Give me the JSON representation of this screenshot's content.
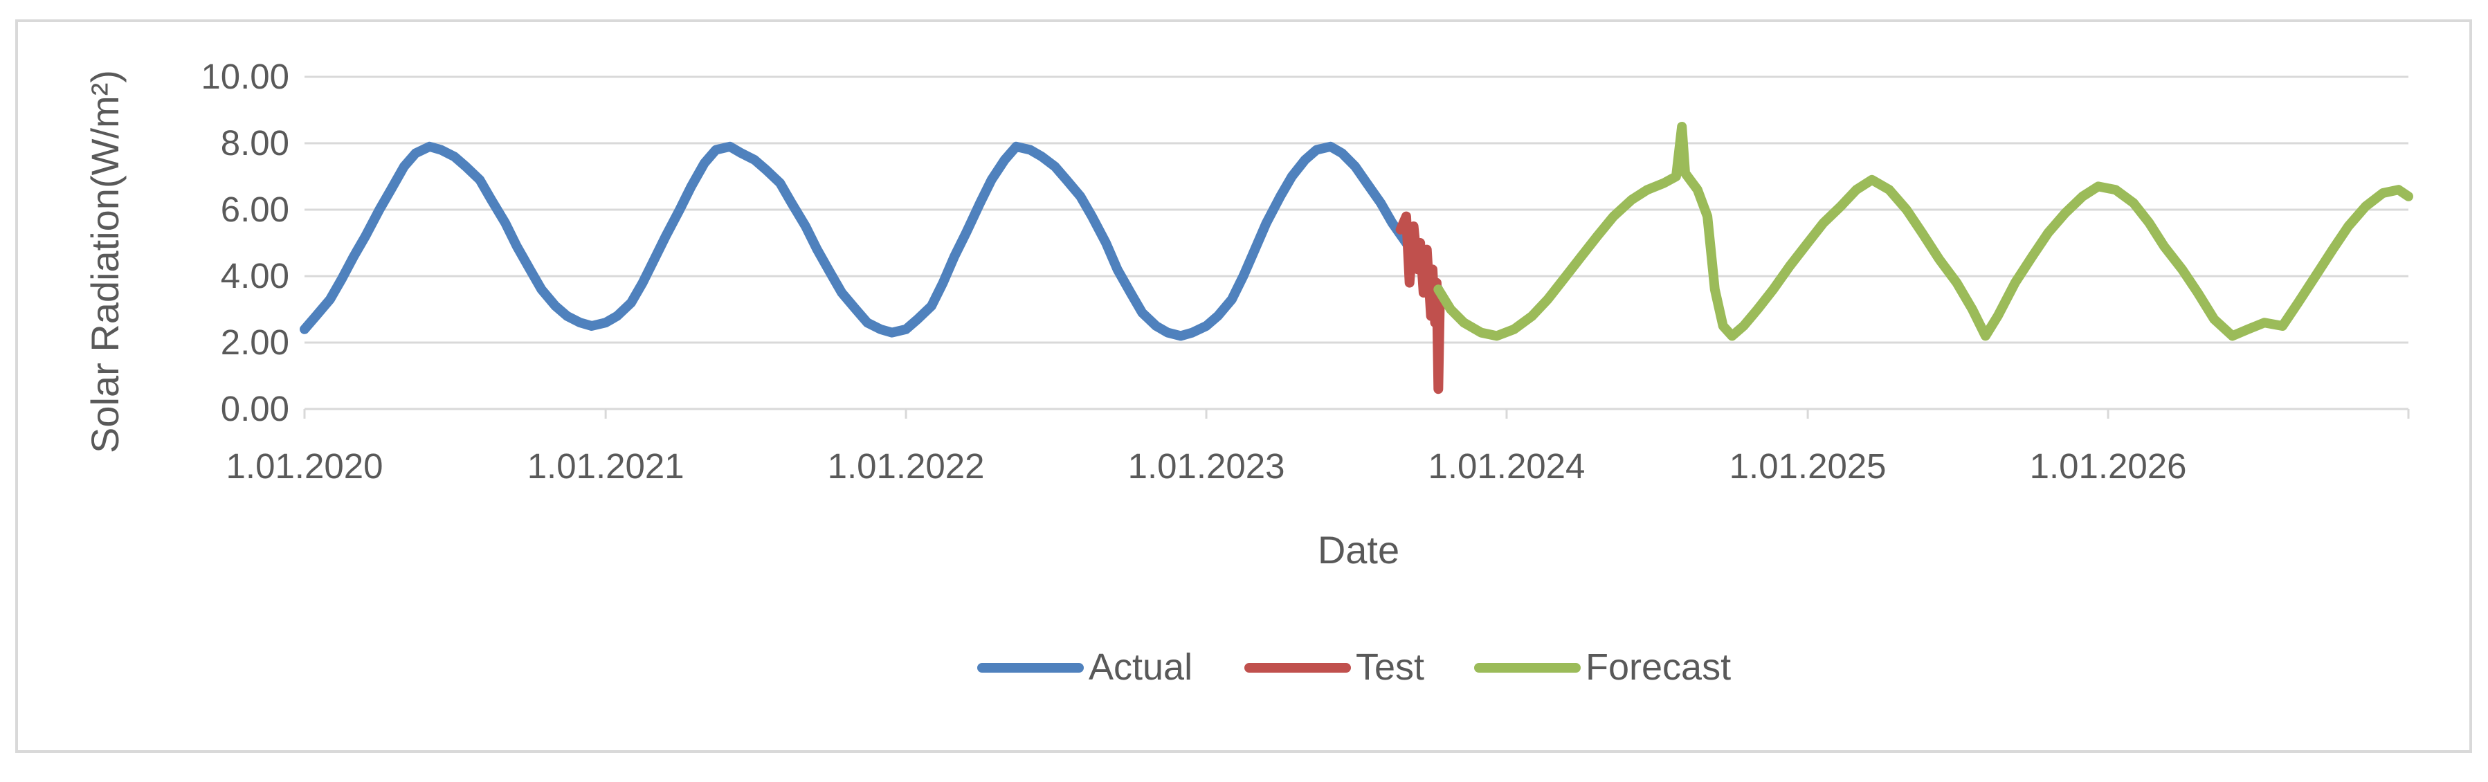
{
  "chart_data": {
    "type": "line",
    "title": "",
    "xlabel": "Date",
    "ylabel": "Solar Radiation(W/m²)",
    "ylim": [
      0,
      10
    ],
    "xlim": [
      "2020-01-01",
      "2027-01-01"
    ],
    "y_ticks": [
      "0.00",
      "2.00",
      "4.00",
      "6.00",
      "8.00",
      "10.00"
    ],
    "x_ticks": [
      {
        "date": "2020-01-01",
        "label": "1.01.2020"
      },
      {
        "date": "2021-01-01",
        "label": "1.01.2021"
      },
      {
        "date": "2022-01-01",
        "label": "1.01.2022"
      },
      {
        "date": "2023-01-01",
        "label": "1.01.2023"
      },
      {
        "date": "2024-01-01",
        "label": "1.01.2024"
      },
      {
        "date": "2025-01-01",
        "label": "1.01.2025"
      },
      {
        "date": "2026-01-01",
        "label": "1.01.2026"
      }
    ],
    "grid": true,
    "legend_position": "bottom",
    "series": [
      {
        "name": "Actual",
        "color": "#4f81bd",
        "points": [
          [
            "2020-01-01",
            2.4
          ],
          [
            "2020-01-15",
            2.8
          ],
          [
            "2020-02-01",
            3.3
          ],
          [
            "2020-02-15",
            3.9
          ],
          [
            "2020-03-01",
            4.6
          ],
          [
            "2020-03-15",
            5.2
          ],
          [
            "2020-04-01",
            6.0
          ],
          [
            "2020-04-15",
            6.6
          ],
          [
            "2020-05-01",
            7.3
          ],
          [
            "2020-05-15",
            7.7
          ],
          [
            "2020-06-01",
            7.9
          ],
          [
            "2020-06-15",
            7.8
          ],
          [
            "2020-07-01",
            7.6
          ],
          [
            "2020-07-15",
            7.3
          ],
          [
            "2020-08-01",
            6.9
          ],
          [
            "2020-08-15",
            6.3
          ],
          [
            "2020-09-01",
            5.6
          ],
          [
            "2020-09-15",
            4.9
          ],
          [
            "2020-10-01",
            4.2
          ],
          [
            "2020-10-15",
            3.6
          ],
          [
            "2020-11-01",
            3.1
          ],
          [
            "2020-11-15",
            2.8
          ],
          [
            "2020-12-01",
            2.6
          ],
          [
            "2020-12-15",
            2.5
          ],
          [
            "2021-01-01",
            2.6
          ],
          [
            "2021-01-15",
            2.8
          ],
          [
            "2021-02-01",
            3.2
          ],
          [
            "2021-02-15",
            3.8
          ],
          [
            "2021-03-01",
            4.5
          ],
          [
            "2021-03-15",
            5.2
          ],
          [
            "2021-04-01",
            6.0
          ],
          [
            "2021-04-15",
            6.7
          ],
          [
            "2021-05-01",
            7.4
          ],
          [
            "2021-05-15",
            7.8
          ],
          [
            "2021-06-01",
            7.9
          ],
          [
            "2021-06-15",
            7.7
          ],
          [
            "2021-07-01",
            7.5
          ],
          [
            "2021-07-15",
            7.2
          ],
          [
            "2021-08-01",
            6.8
          ],
          [
            "2021-08-15",
            6.2
          ],
          [
            "2021-09-01",
            5.5
          ],
          [
            "2021-09-15",
            4.8
          ],
          [
            "2021-10-01",
            4.1
          ],
          [
            "2021-10-15",
            3.5
          ],
          [
            "2021-11-01",
            3.0
          ],
          [
            "2021-11-15",
            2.6
          ],
          [
            "2021-12-01",
            2.4
          ],
          [
            "2021-12-15",
            2.3
          ],
          [
            "2022-01-01",
            2.4
          ],
          [
            "2022-01-15",
            2.7
          ],
          [
            "2022-02-01",
            3.1
          ],
          [
            "2022-02-15",
            3.8
          ],
          [
            "2022-03-01",
            4.6
          ],
          [
            "2022-03-15",
            5.3
          ],
          [
            "2022-04-01",
            6.2
          ],
          [
            "2022-04-15",
            6.9
          ],
          [
            "2022-05-01",
            7.5
          ],
          [
            "2022-05-15",
            7.9
          ],
          [
            "2022-06-01",
            7.8
          ],
          [
            "2022-06-15",
            7.6
          ],
          [
            "2022-07-01",
            7.3
          ],
          [
            "2022-07-15",
            6.9
          ],
          [
            "2022-08-01",
            6.4
          ],
          [
            "2022-08-15",
            5.8
          ],
          [
            "2022-09-01",
            5.0
          ],
          [
            "2022-09-15",
            4.2
          ],
          [
            "2022-10-01",
            3.5
          ],
          [
            "2022-10-15",
            2.9
          ],
          [
            "2022-11-01",
            2.5
          ],
          [
            "2022-11-15",
            2.3
          ],
          [
            "2022-12-01",
            2.2
          ],
          [
            "2022-12-15",
            2.3
          ],
          [
            "2023-01-01",
            2.5
          ],
          [
            "2023-01-15",
            2.8
          ],
          [
            "2023-02-01",
            3.3
          ],
          [
            "2023-02-15",
            4.0
          ],
          [
            "2023-03-01",
            4.8
          ],
          [
            "2023-03-15",
            5.6
          ],
          [
            "2023-04-01",
            6.4
          ],
          [
            "2023-04-15",
            7.0
          ],
          [
            "2023-05-01",
            7.5
          ],
          [
            "2023-05-15",
            7.8
          ],
          [
            "2023-06-01",
            7.9
          ],
          [
            "2023-06-15",
            7.7
          ],
          [
            "2023-07-01",
            7.3
          ],
          [
            "2023-07-15",
            6.8
          ],
          [
            "2023-08-01",
            6.2
          ],
          [
            "2023-08-15",
            5.6
          ],
          [
            "2023-09-01",
            5.0
          ],
          [
            "2023-09-15",
            4.5
          ],
          [
            "2023-10-01",
            4.0
          ],
          [
            "2023-10-10",
            3.6
          ]
        ]
      },
      {
        "name": "Test",
        "color": "#c0504d",
        "points": [
          [
            "2023-08-25",
            5.4
          ],
          [
            "2023-09-01",
            5.8
          ],
          [
            "2023-09-05",
            3.8
          ],
          [
            "2023-09-10",
            5.5
          ],
          [
            "2023-09-15",
            4.2
          ],
          [
            "2023-09-18",
            5.0
          ],
          [
            "2023-09-22",
            3.5
          ],
          [
            "2023-09-26",
            4.8
          ],
          [
            "2023-10-01",
            2.8
          ],
          [
            "2023-10-03",
            4.2
          ],
          [
            "2023-10-06",
            2.6
          ],
          [
            "2023-10-08",
            3.8
          ],
          [
            "2023-10-10",
            0.6
          ],
          [
            "2023-10-12",
            3.4
          ]
        ]
      },
      {
        "name": "Forecast",
        "color": "#9bbb59",
        "points": [
          [
            "2023-10-10",
            3.6
          ],
          [
            "2023-10-25",
            3.0
          ],
          [
            "2023-11-10",
            2.6
          ],
          [
            "2023-12-01",
            2.3
          ],
          [
            "2023-12-20",
            2.2
          ],
          [
            "2024-01-10",
            2.4
          ],
          [
            "2024-02-01",
            2.8
          ],
          [
            "2024-02-20",
            3.3
          ],
          [
            "2024-03-10",
            3.9
          ],
          [
            "2024-04-01",
            4.6
          ],
          [
            "2024-04-20",
            5.2
          ],
          [
            "2024-05-10",
            5.8
          ],
          [
            "2024-06-01",
            6.3
          ],
          [
            "2024-06-20",
            6.6
          ],
          [
            "2024-07-10",
            6.8
          ],
          [
            "2024-07-25",
            7.0
          ],
          [
            "2024-08-01",
            8.5
          ],
          [
            "2024-08-05",
            7.1
          ],
          [
            "2024-08-20",
            6.6
          ],
          [
            "2024-09-01",
            5.8
          ],
          [
            "2024-09-10",
            3.6
          ],
          [
            "2024-09-20",
            2.5
          ],
          [
            "2024-10-01",
            2.2
          ],
          [
            "2024-10-15",
            2.5
          ],
          [
            "2024-11-01",
            3.0
          ],
          [
            "2024-11-20",
            3.6
          ],
          [
            "2024-12-10",
            4.3
          ],
          [
            "2025-01-01",
            5.0
          ],
          [
            "2025-01-20",
            5.6
          ],
          [
            "2025-02-10",
            6.1
          ],
          [
            "2025-03-01",
            6.6
          ],
          [
            "2025-03-20",
            6.9
          ],
          [
            "2025-04-10",
            6.6
          ],
          [
            "2025-05-01",
            6.0
          ],
          [
            "2025-05-20",
            5.3
          ],
          [
            "2025-06-10",
            4.5
          ],
          [
            "2025-07-01",
            3.8
          ],
          [
            "2025-07-20",
            3.0
          ],
          [
            "2025-08-05",
            2.2
          ],
          [
            "2025-08-20",
            2.8
          ],
          [
            "2025-09-10",
            3.8
          ],
          [
            "2025-10-01",
            4.6
          ],
          [
            "2025-10-20",
            5.3
          ],
          [
            "2025-11-10",
            5.9
          ],
          [
            "2025-12-01",
            6.4
          ],
          [
            "2025-12-20",
            6.7
          ],
          [
            "2026-01-10",
            6.6
          ],
          [
            "2026-02-01",
            6.2
          ],
          [
            "2026-02-20",
            5.6
          ],
          [
            "2026-03-10",
            4.9
          ],
          [
            "2026-04-01",
            4.2
          ],
          [
            "2026-04-20",
            3.5
          ],
          [
            "2026-05-10",
            2.7
          ],
          [
            "2026-06-01",
            2.2
          ],
          [
            "2026-06-20",
            2.4
          ],
          [
            "2026-07-10",
            2.6
          ],
          [
            "2026-08-01",
            2.5
          ],
          [
            "2026-08-20",
            3.2
          ],
          [
            "2026-09-10",
            4.0
          ],
          [
            "2026-10-01",
            4.8
          ],
          [
            "2026-10-20",
            5.5
          ],
          [
            "2026-11-10",
            6.1
          ],
          [
            "2026-12-01",
            6.5
          ],
          [
            "2026-12-20",
            6.6
          ],
          [
            "2027-01-01",
            6.4
          ]
        ]
      }
    ]
  }
}
